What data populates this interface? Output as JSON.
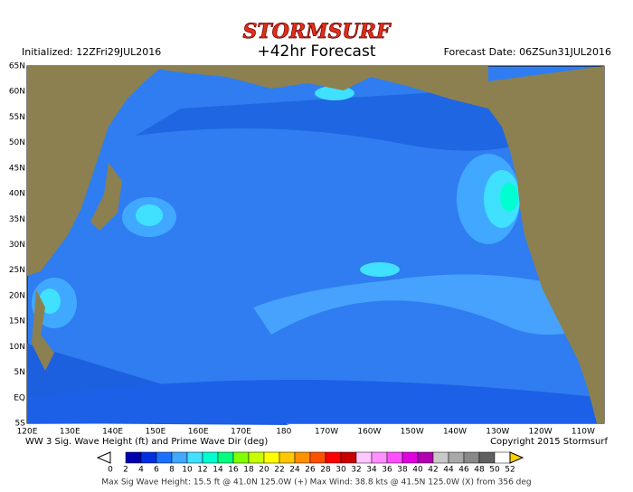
{
  "header": {
    "logo": "STORMSURF",
    "title": "+42hr Forecast",
    "initialized": "Initialized: 12ZFri29JUL2016",
    "forecast_date": "Forecast Date: 06ZSun31JUL2016"
  },
  "map": {
    "lat_labels": [
      "65N",
      "60N",
      "55N",
      "50N",
      "45N",
      "40N",
      "35N",
      "30N",
      "25N",
      "20N",
      "15N",
      "10N",
      "5N",
      "EQ",
      "5S"
    ],
    "lon_labels": [
      "120E",
      "130E",
      "140E",
      "150E",
      "160E",
      "170E",
      "180",
      "170W",
      "160W",
      "150W",
      "140W",
      "130W",
      "120W",
      "110W"
    ]
  },
  "caption": {
    "left": "WW 3 Sig. Wave Height (ft) and Prime Wave Dir (deg)",
    "right": "Copyright 2015 Stormsurf"
  },
  "legend": {
    "levels": [
      "0",
      "2",
      "4",
      "6",
      "8",
      "10",
      "12",
      "14",
      "16",
      "18",
      "20",
      "22",
      "24",
      "26",
      "28",
      "30",
      "32",
      "34",
      "36",
      "38",
      "40",
      "42",
      "44",
      "46",
      "48",
      "50",
      "52"
    ],
    "colors": [
      "#ffffff",
      "#0000b0",
      "#0030e0",
      "#1c70ff",
      "#40a8ff",
      "#40e0ff",
      "#00ffd0",
      "#00ff80",
      "#80ff00",
      "#c8ff00",
      "#ffff00",
      "#ffc800",
      "#ff9000",
      "#ff5000",
      "#ff0000",
      "#c80000",
      "#ffc8ff",
      "#ff90ff",
      "#ff50ff",
      "#e000e0",
      "#b000b0",
      "#c8c8c8",
      "#a8a8a8",
      "#888888",
      "#606060",
      "#ffffff",
      "#ffd000"
    ]
  },
  "footer": "Max Sig Wave Height: 15.5 ft @ 41.0N 125.0W (+)   Max Wind: 38.8 kts @ 41.5N 125.0W (X) from 356 deg"
}
